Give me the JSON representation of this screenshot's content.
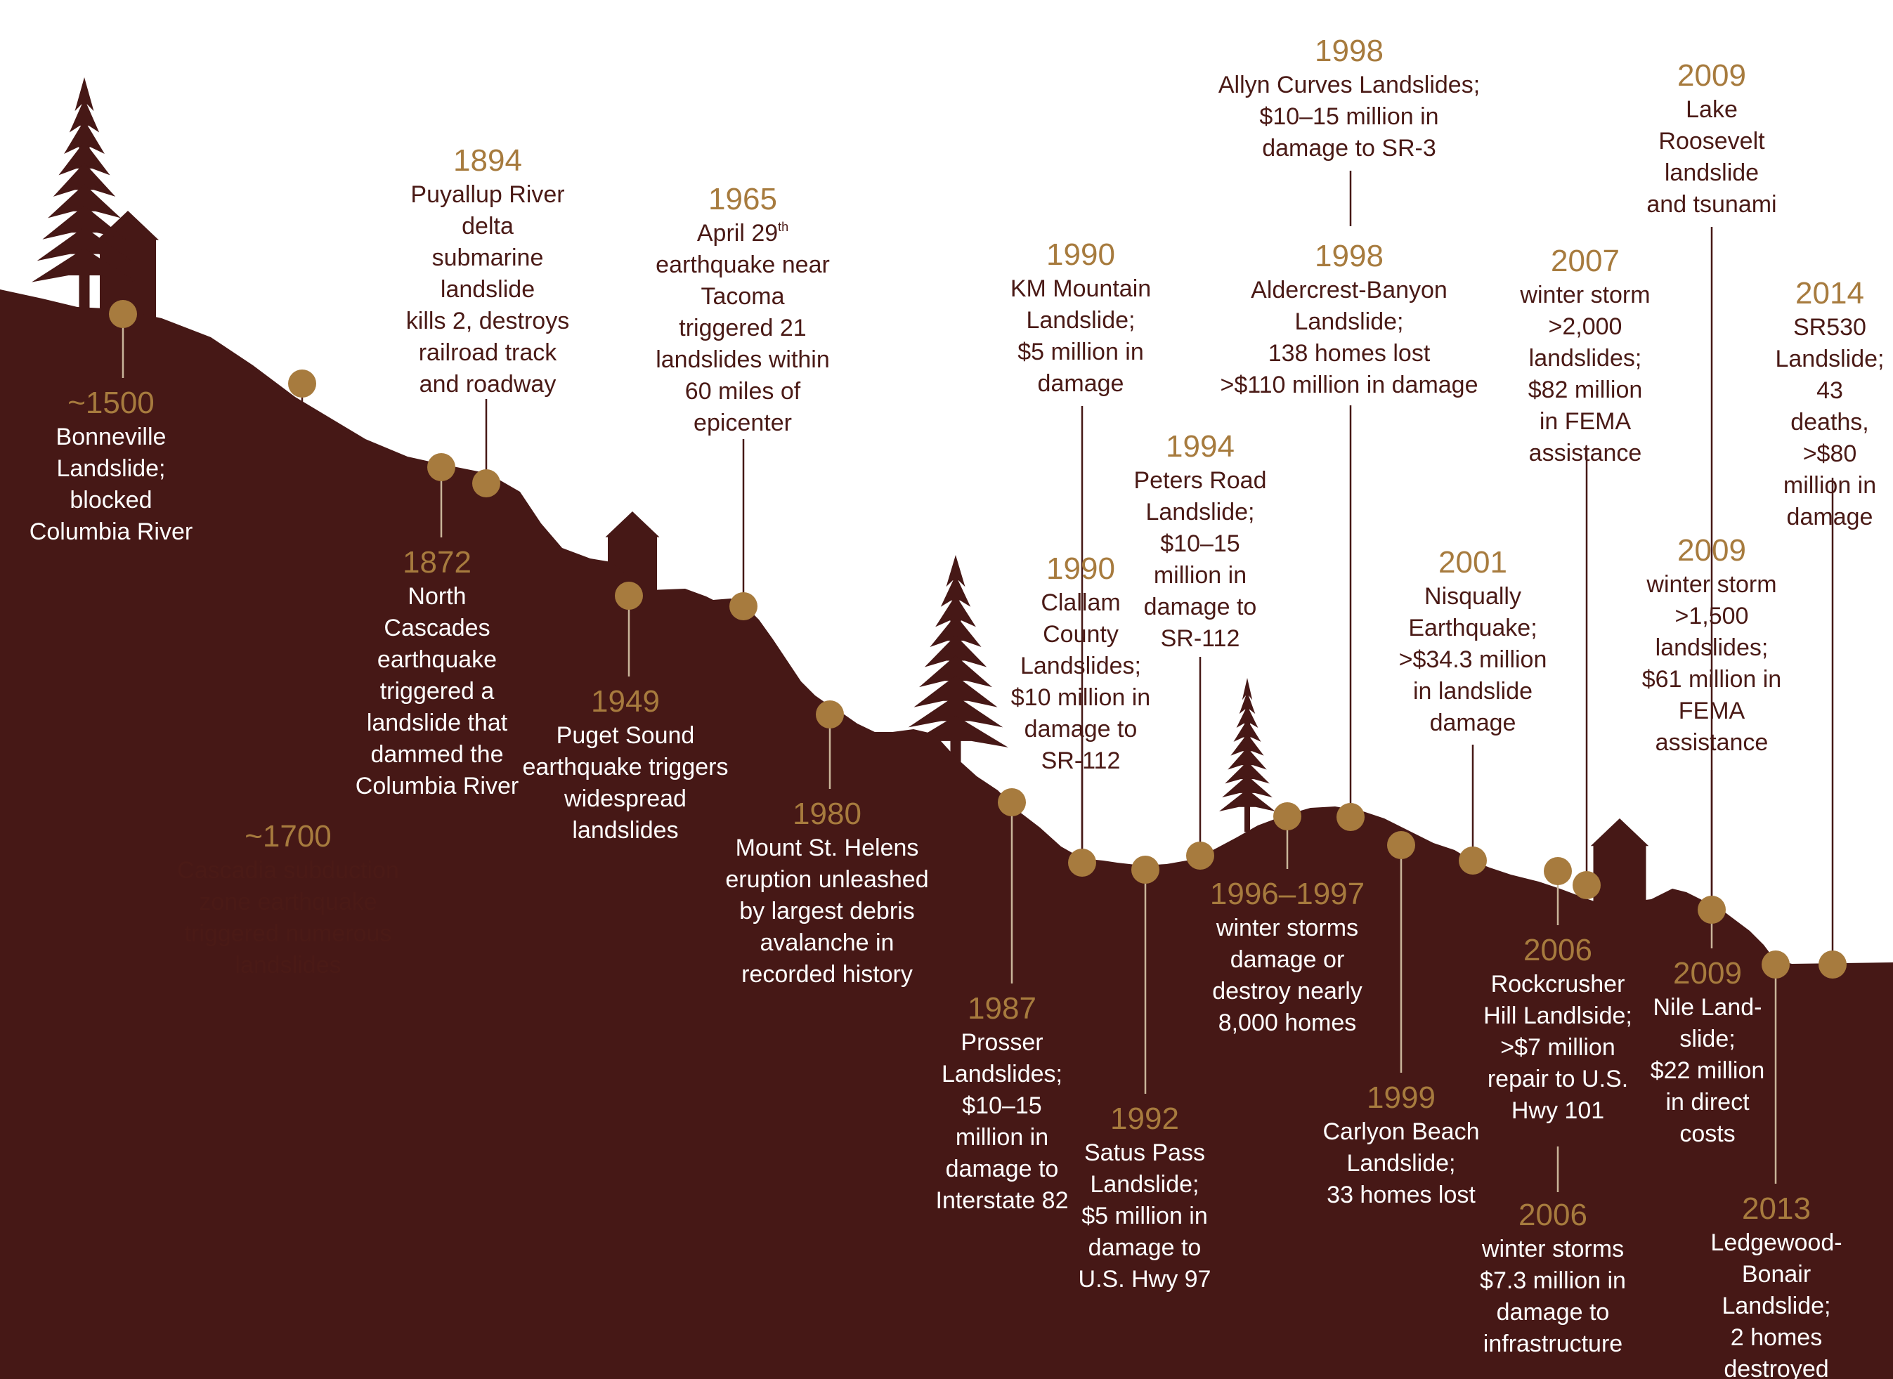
{
  "colors": {
    "terrain": "#461816",
    "marker": "#a77b3e",
    "year_text": "#a77b3e",
    "dark_text": "#4a1a16",
    "light_text": "#ffffff",
    "background": "#ffffff"
  },
  "events": [
    {
      "id": "e1500",
      "year": "~1500",
      "lines": [
        "Bonneville",
        "Landslide;",
        "blocked",
        "Columbia River"
      ]
    },
    {
      "id": "e1700",
      "year": "~1700",
      "lines": [
        "Cascadia subduction",
        "zone earthquake",
        "triggered numerous",
        "landslides"
      ]
    },
    {
      "id": "e1872",
      "year": "1872",
      "lines": [
        "North",
        "Cascades",
        "earthquake",
        "triggered a",
        "landslide that",
        "dammed the",
        "Columbia River"
      ]
    },
    {
      "id": "e1894",
      "year": "1894",
      "lines": [
        "Puyallup River",
        "delta",
        "submarine",
        "landslide",
        "kills 2, destroys",
        "railroad track",
        "and roadway"
      ]
    },
    {
      "id": "e1949",
      "year": "1949",
      "lines": [
        "Puget Sound",
        "earthquake triggers",
        "widespread",
        "landslides"
      ]
    },
    {
      "id": "e1965",
      "year": "1965",
      "lines_prefix": "April 29",
      "lines_sup": "th",
      "lines": [
        "earthquake near",
        "Tacoma",
        "triggered 21",
        "landslides within",
        "60 miles of",
        "epicenter"
      ]
    },
    {
      "id": "e1980",
      "year": "1980",
      "lines": [
        "Mount St. Helens",
        "eruption unleashed",
        "by largest debris",
        "avalanche in",
        "recorded history"
      ]
    },
    {
      "id": "e1987",
      "year": "1987",
      "lines": [
        "Prosser",
        "Landslides;",
        "$10–15",
        "million in",
        "damage to",
        "Interstate 82"
      ]
    },
    {
      "id": "e1990a",
      "year": "1990",
      "lines": [
        "KM Mountain",
        "Landslide;",
        "$5 million in",
        "damage"
      ]
    },
    {
      "id": "e1990b",
      "year": "1990",
      "lines": [
        "Clallam",
        "County",
        "Landslides;",
        "$10 million in",
        "damage to",
        "SR-112"
      ]
    },
    {
      "id": "e1992",
      "year": "1992",
      "lines": [
        "Satus Pass",
        "Landslide;",
        "$5 million in",
        "damage to",
        "U.S. Hwy 97"
      ]
    },
    {
      "id": "e1994",
      "year": "1994",
      "lines": [
        "Peters Road",
        "Landslide;",
        "$10–15",
        "million in",
        "damage to",
        "SR-112"
      ]
    },
    {
      "id": "e1996",
      "year": "1996–1997",
      "lines": [
        "winter storms",
        "damage or",
        "destroy nearly",
        "8,000 homes"
      ]
    },
    {
      "id": "e1998a",
      "year": "1998",
      "lines": [
        "Allyn Curves Landslides;",
        "$10–15 million in",
        "damage to SR-3"
      ]
    },
    {
      "id": "e1998b",
      "year": "1998",
      "lines": [
        "Aldercrest-Banyon",
        "Landslide;",
        "138 homes lost",
        ">$110 million in damage"
      ]
    },
    {
      "id": "e1999",
      "year": "1999",
      "lines": [
        "Carlyon Beach",
        "Landslide;",
        "33 homes lost"
      ]
    },
    {
      "id": "e2001",
      "year": "2001",
      "lines": [
        "Nisqually",
        "Earthquake;",
        ">$34.3 million",
        "in landslide",
        "damage"
      ]
    },
    {
      "id": "e2006a",
      "year": "2006",
      "lines": [
        "Rockcrusher",
        "Hill Landlside;",
        ">$7 million",
        "repair to U.S.",
        "Hwy 101"
      ]
    },
    {
      "id": "e2006b",
      "year": "2006",
      "lines": [
        "winter storms",
        "$7.3 million in",
        "damage to",
        "infrastructure"
      ]
    },
    {
      "id": "e2007",
      "year": "2007",
      "lines": [
        "winter storm",
        ">2,000",
        "landslides;",
        "$82 million",
        "in FEMA",
        "assistance"
      ]
    },
    {
      "id": "e2009a",
      "year": "2009",
      "lines": [
        "Lake",
        "Roosevelt",
        "landslide",
        "and tsunami"
      ]
    },
    {
      "id": "e2009b",
      "year": "2009",
      "lines": [
        "winter storm",
        ">1,500",
        "landslides;",
        "$61 million in",
        "FEMA",
        "assistance"
      ]
    },
    {
      "id": "e2009c",
      "year": "2009",
      "lines": [
        "Nile Land-",
        "slide;",
        "$22 million",
        "in direct",
        "costs"
      ]
    },
    {
      "id": "e2013",
      "year": "2013",
      "lines": [
        "Ledgewood-Bonair",
        "Landslide;",
        "2 homes destroyed"
      ]
    },
    {
      "id": "e2014",
      "year": "2014",
      "lines": [
        "SR530",
        "Landslide;",
        "43 deaths,",
        ">$80",
        "million in",
        "damage"
      ]
    }
  ]
}
